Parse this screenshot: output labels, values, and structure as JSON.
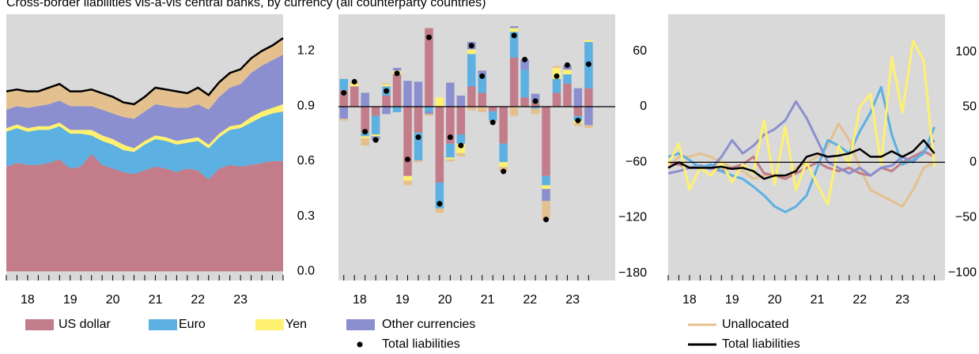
{
  "chart_data": [
    {
      "type": "area",
      "title": "Cross-border liabilities vis-à-vis central banks, by currency (all counterparty countries)",
      "x": [
        2018,
        2018.25,
        2018.5,
        2018.75,
        2019,
        2019.25,
        2019.5,
        2019.75,
        2020,
        2020.25,
        2020.5,
        2020.75,
        2021,
        2021.25,
        2021.5,
        2021.75,
        2022,
        2022.25,
        2022.5,
        2022.75,
        2023,
        2023.25,
        2023.5,
        2023.75,
        2024,
        2024.25,
        2024.5
      ],
      "xlim": [
        2018,
        2024.5
      ],
      "xticks": [
        {
          "value": 2018.5,
          "label": "18"
        },
        {
          "value": 2019.5,
          "label": "19"
        },
        {
          "value": 2020.5,
          "label": "20"
        },
        {
          "value": 2021.5,
          "label": "21"
        },
        {
          "value": 2022.5,
          "label": "22"
        },
        {
          "value": 2023.5,
          "label": "23"
        }
      ],
      "ylim": [
        -0.05,
        1.4
      ],
      "yticks": [
        {
          "value": 0,
          "label": "0.0"
        },
        0.3,
        0.6,
        0.9,
        1.2
      ],
      "stacked": true,
      "series": [
        {
          "name": "US dollar",
          "color": "#c27c8a",
          "values": [
            0.57,
            0.59,
            0.58,
            0.58,
            0.59,
            0.61,
            0.56,
            0.57,
            0.64,
            0.58,
            0.56,
            0.54,
            0.53,
            0.55,
            0.57,
            0.56,
            0.54,
            0.56,
            0.55,
            0.5,
            0.56,
            0.58,
            0.57,
            0.58,
            0.59,
            0.6,
            0.6
          ]
        },
        {
          "name": "Euro",
          "color": "#5cb0e2",
          "values": [
            0.19,
            0.19,
            0.18,
            0.19,
            0.18,
            0.18,
            0.19,
            0.18,
            0.1,
            0.13,
            0.13,
            0.12,
            0.12,
            0.14,
            0.15,
            0.15,
            0.15,
            0.14,
            0.16,
            0.17,
            0.17,
            0.19,
            0.21,
            0.23,
            0.25,
            0.26,
            0.27
          ]
        },
        {
          "name": "Yen",
          "color": "#fff170",
          "values": [
            0.02,
            0.02,
            0.02,
            0.02,
            0.02,
            0.02,
            0.02,
            0.02,
            0.03,
            0.03,
            0.03,
            0.03,
            0.02,
            0.02,
            0.02,
            0.02,
            0.02,
            0.02,
            0.02,
            0.02,
            0.02,
            0.02,
            0.02,
            0.03,
            0.03,
            0.03,
            0.04
          ]
        },
        {
          "name": "Other currencies",
          "color": "#8b8fcf",
          "values": [
            0.1,
            0.1,
            0.11,
            0.11,
            0.12,
            0.12,
            0.13,
            0.13,
            0.13,
            0.14,
            0.14,
            0.15,
            0.16,
            0.16,
            0.17,
            0.17,
            0.18,
            0.17,
            0.18,
            0.19,
            0.2,
            0.21,
            0.22,
            0.24,
            0.25,
            0.26,
            0.27
          ]
        },
        {
          "name": "Unallocated",
          "color": "#e4c08f",
          "values": [
            0.1,
            0.09,
            0.09,
            0.08,
            0.09,
            0.09,
            0.08,
            0.08,
            0.09,
            0.09,
            0.09,
            0.08,
            0.08,
            0.08,
            0.09,
            0.09,
            0.09,
            0.08,
            0.09,
            0.08,
            0.08,
            0.08,
            0.08,
            0.08,
            0.08,
            0.08,
            0.09
          ]
        }
      ],
      "total": {
        "color": "#000000",
        "values": [
          0.98,
          0.99,
          0.98,
          0.98,
          1.0,
          1.02,
          0.98,
          0.98,
          0.99,
          0.97,
          0.95,
          0.92,
          0.91,
          0.95,
          1.0,
          0.99,
          0.98,
          0.97,
          1.0,
          0.96,
          1.03,
          1.08,
          1.1,
          1.16,
          1.2,
          1.23,
          1.27
        ]
      }
    },
    {
      "type": "bar",
      "x": [
        2018.125,
        2018.375,
        2018.625,
        2018.875,
        2019.125,
        2019.375,
        2019.625,
        2019.875,
        2020.125,
        2020.375,
        2020.625,
        2020.875,
        2021.125,
        2021.375,
        2021.625,
        2021.875,
        2022.125,
        2022.375,
        2022.625,
        2022.875,
        2023.125,
        2023.375,
        2023.625,
        2023.875
      ],
      "xlim": [
        2018,
        2024.5
      ],
      "xticks": [
        {
          "value": 2018.5,
          "label": "18"
        },
        {
          "value": 2019.5,
          "label": "19"
        },
        {
          "value": 2020.5,
          "label": "20"
        },
        {
          "value": 2021.5,
          "label": "21"
        },
        {
          "value": 2022.5,
          "label": "22"
        },
        {
          "value": 2023.5,
          "label": "23"
        }
      ],
      "ylim": [
        -188,
        100
      ],
      "yticks": [
        60,
        0,
        {
          "value": -60,
          "label": "−60"
        },
        {
          "value": -120,
          "label": "−120"
        },
        {
          "value": -180,
          "label": "−180"
        }
      ],
      "zero_line": true,
      "stacked": true,
      "series": [
        {
          "color": "#c27c8a",
          "values": [
            18,
            22,
            -28,
            -10,
            12,
            35,
            -75,
            -28,
            85,
            -82,
            -40,
            -30,
            22,
            15,
            -5,
            -40,
            53,
            10,
            4,
            -75,
            15,
            25,
            -10,
            20
          ]
        },
        {
          "color": "#5cb0e2",
          "values": [
            12,
            0,
            -4,
            -20,
            10,
            -6,
            0,
            -30,
            -5,
            -28,
            -15,
            -10,
            35,
            20,
            -10,
            -20,
            28,
            30,
            -2,
            -10,
            15,
            10,
            -5,
            50
          ]
        },
        {
          "color": "#fff170",
          "values": [
            0,
            3,
            -2,
            -2,
            2,
            4,
            -5,
            0,
            0,
            10,
            -2,
            -10,
            5,
            0,
            0,
            -5,
            4,
            0,
            0,
            -4,
            12,
            5,
            -3,
            2
          ]
        },
        {
          "color": "#8b8fcf",
          "values": [
            -13,
            0,
            15,
            -4,
            -8,
            3,
            28,
            27,
            -3,
            0,
            26,
            12,
            8,
            4,
            0,
            0,
            2,
            11,
            10,
            -13,
            0,
            5,
            20,
            -20
          ]
        },
        {
          "color": "#e4c08f",
          "values": [
            -2,
            2,
            -8,
            0,
            1,
            0,
            -5,
            -2,
            -2,
            -5,
            -2,
            -4,
            -4,
            -6,
            -2,
            -5,
            -10,
            0,
            -6,
            -20,
            2,
            0,
            -3,
            -3
          ]
        }
      ],
      "total": {
        "name": "Total liabilities",
        "marker": "dot",
        "color": "#000000",
        "values": [
          15,
          27,
          -27,
          -36,
          17,
          36,
          -57,
          -33,
          75,
          -105,
          -33,
          -42,
          66,
          33,
          -17,
          -70,
          77,
          51,
          6,
          -122,
          33,
          45,
          -15,
          46
        ]
      }
    },
    {
      "type": "line",
      "x": [
        2018,
        2018.25,
        2018.5,
        2018.75,
        2019,
        2019.25,
        2019.5,
        2019.75,
        2020,
        2020.25,
        2020.5,
        2020.75,
        2021,
        2021.25,
        2021.5,
        2021.75,
        2022,
        2022.25,
        2022.5,
        2022.75,
        2023,
        2023.25,
        2023.5,
        2023.75,
        2024,
        2024.25
      ],
      "xlim": [
        2018,
        2024.5
      ],
      "xticks": [
        {
          "value": 2018.5,
          "label": "18"
        },
        {
          "value": 2019.5,
          "label": "19"
        },
        {
          "value": 2020.5,
          "label": "20"
        },
        {
          "value": 2021.5,
          "label": "21"
        },
        {
          "value": 2022.5,
          "label": "22"
        },
        {
          "value": 2023.5,
          "label": "23"
        }
      ],
      "ylim": [
        -107,
        134
      ],
      "yticks": [
        100,
        50,
        0,
        {
          "value": -50,
          "label": "−50"
        },
        {
          "value": -100,
          "label": "−100"
        }
      ],
      "zero_line": true,
      "series": [
        {
          "color": "#e4c08f",
          "values": [
            -5,
            5,
            5,
            8,
            5,
            0,
            -5,
            -8,
            -15,
            -12,
            -10,
            -15,
            -5,
            0,
            5,
            15,
            35,
            20,
            -5,
            -25,
            -30,
            -35,
            -40,
            -25,
            -5,
            0
          ]
        },
        {
          "color": "#c27c8a",
          "values": [
            0,
            -2,
            -5,
            -3,
            -5,
            -8,
            -5,
            -2,
            5,
            -10,
            -12,
            -15,
            -10,
            -5,
            0,
            -5,
            -8,
            -5,
            -10,
            -12,
            -5,
            -8,
            0,
            5,
            10,
            5
          ]
        },
        {
          "color": "#8b8fcf",
          "values": [
            -10,
            -8,
            -5,
            -3,
            -6,
            5,
            20,
            8,
            15,
            25,
            30,
            38,
            55,
            40,
            20,
            0,
            -5,
            -10,
            -5,
            -12,
            -5,
            -3,
            5,
            0,
            10,
            20
          ]
        },
        {
          "color": "#5cb0e2",
          "values": [
            5,
            8,
            2,
            -5,
            -2,
            -8,
            -12,
            -15,
            -22,
            -30,
            -40,
            -45,
            -40,
            -30,
            -5,
            20,
            15,
            8,
            28,
            45,
            68,
            25,
            -2,
            2,
            8,
            32
          ]
        },
        {
          "color": "#fff170",
          "values": [
            -2,
            17,
            -25,
            -5,
            -12,
            0,
            -18,
            -2,
            -10,
            38,
            -20,
            32,
            -25,
            0,
            -20,
            -38,
            15,
            -2,
            50,
            62,
            -2,
            95,
            45,
            110,
            92,
            -4
          ]
        }
      ],
      "total": {
        "name": "Total liabilities",
        "color": "#000000",
        "values": [
          -5,
          0,
          -5,
          -5,
          -5,
          -4,
          -6,
          -5,
          -8,
          -15,
          -12,
          -12,
          -8,
          5,
          8,
          5,
          6,
          8,
          12,
          5,
          5,
          10,
          5,
          10,
          20,
          8
        ]
      }
    }
  ]
}
